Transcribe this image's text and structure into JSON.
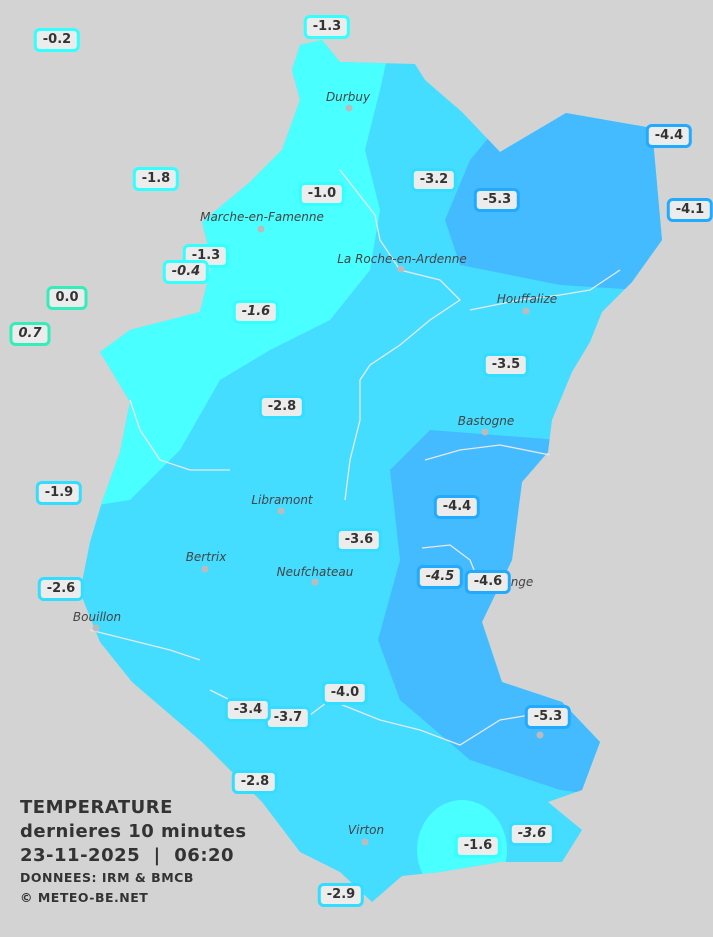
{
  "legend": {
    "title": "TEMPERATURE",
    "subtitle": "dernieres 10 minutes",
    "datetime": "23-11-2025  |  06:20",
    "source": "DONNEES: IRM & BMCB",
    "copyright": "© METEO-BE.NET"
  },
  "colors": {
    "background": "#d3d3d3",
    "zone_above_minus2": "#4affff",
    "zone_minus2_to_minus4": "#44ddff",
    "zone_below_minus4": "#44bbff",
    "zone_above_0": "#33eebb"
  },
  "cities": [
    "Durbuy",
    "Marche-en-Famenne",
    "La Roche-en-Ardenne",
    "Houffalize",
    "Bastogne",
    "Libramont",
    "Bertrix",
    "Neufchateau",
    "Bouillon",
    "nge",
    "Virton"
  ],
  "stations": [
    {
      "value": "-0.2",
      "color": "#33ffff"
    },
    {
      "value": "-1.3",
      "color": "#33ffff"
    },
    {
      "value": "-1.8",
      "color": "#33ffff"
    },
    {
      "value": "-1.0",
      "color": "#33ffff"
    },
    {
      "value": "-3.2",
      "color": "#33ddff"
    },
    {
      "value": "-5.3",
      "color": "#22aaff"
    },
    {
      "value": "-4.4",
      "color": "#22aaff"
    },
    {
      "value": "-4.1",
      "color": "#22aaff"
    },
    {
      "value": "-1.3",
      "color": "#33ffff"
    },
    {
      "value": "-0.4",
      "color": "#33ffff",
      "italic": true
    },
    {
      "value": "0.0",
      "color": "#33eebb"
    },
    {
      "value": "0.7",
      "color": "#33eebb",
      "italic": true
    },
    {
      "value": "-1.6",
      "color": "#33ffff",
      "italic": true
    },
    {
      "value": "-3.5",
      "color": "#33ddff"
    },
    {
      "value": "-2.8",
      "color": "#33ddff"
    },
    {
      "value": "-1.9",
      "color": "#33ddff"
    },
    {
      "value": "-4.4",
      "color": "#22aaff"
    },
    {
      "value": "-3.6",
      "color": "#33ddff"
    },
    {
      "value": "-4.5",
      "color": "#22aaff",
      "italic": true
    },
    {
      "value": "-4.6",
      "color": "#22aaff"
    },
    {
      "value": "-2.6",
      "color": "#33ddff"
    },
    {
      "value": "-3.7",
      "color": "#33ddff"
    },
    {
      "value": "-3.4",
      "color": "#33ddff"
    },
    {
      "value": "-4.0",
      "color": "#33ddff"
    },
    {
      "value": "-5.3",
      "color": "#22aaff"
    },
    {
      "value": "-2.8",
      "color": "#33ddff"
    },
    {
      "value": "-1.6",
      "color": "#33ffff"
    },
    {
      "value": "-3.6",
      "color": "#33ddff",
      "italic": true
    },
    {
      "value": "-2.9",
      "color": "#33ddff"
    }
  ]
}
